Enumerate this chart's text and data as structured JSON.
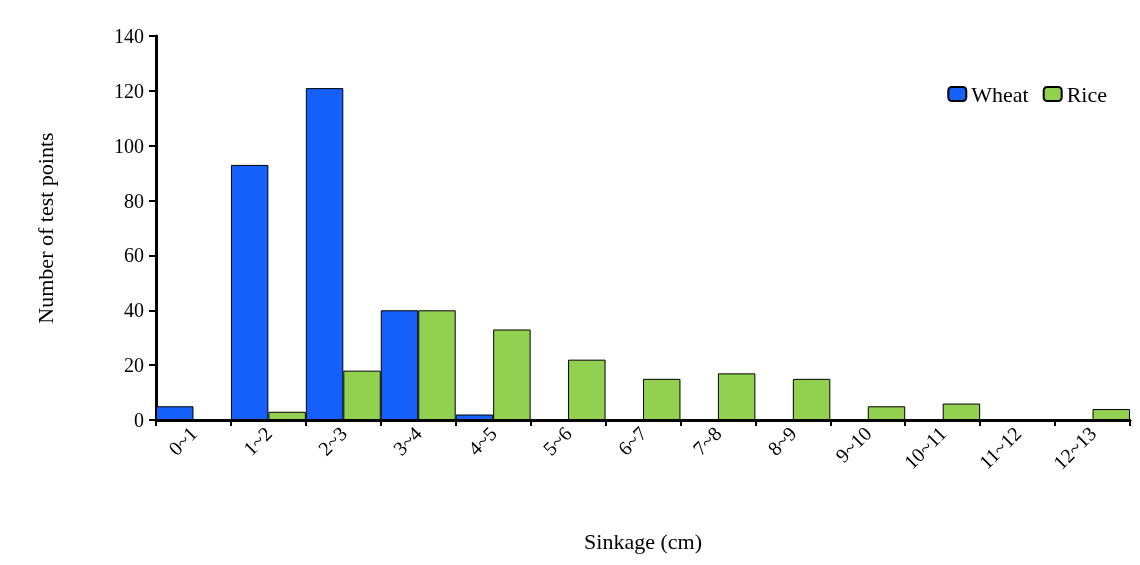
{
  "chart_data": {
    "type": "bar",
    "xlabel": "Sinkage (cm)",
    "ylabel": "Number of test points",
    "categories": [
      "0~1",
      "1~2",
      "2~3",
      "3~4",
      "4~5",
      "5~6",
      "6~7",
      "7~8",
      "8~9",
      "9~10",
      "10~11",
      "11~12",
      "12~13"
    ],
    "series": [
      {
        "name": "Wheat",
        "color": "#1560fb",
        "values": [
          5,
          93,
          121,
          40,
          2,
          0,
          0,
          0,
          0,
          0,
          0,
          0,
          0
        ]
      },
      {
        "name": "Rice",
        "color": "#92d050",
        "values": [
          0,
          3,
          18,
          40,
          33,
          22,
          15,
          17,
          15,
          5,
          6,
          0,
          4
        ]
      }
    ],
    "ylim": [
      0,
      140
    ],
    "yticks": [
      0,
      20,
      40,
      60,
      80,
      100,
      120,
      140
    ],
    "grid": false,
    "legend": "top right"
  }
}
